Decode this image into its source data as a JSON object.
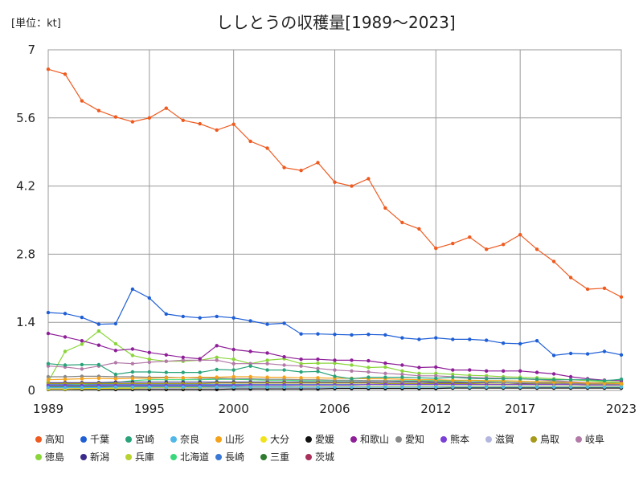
{
  "chart_data": {
    "type": "line",
    "title": "ししとうの収穫量[1989～2023]",
    "unit_label": "[単位：kt]",
    "x_ticks": [
      "1989",
      "1995",
      "2000",
      "2006",
      "2012",
      "2017",
      "2023"
    ],
    "y_ticks": [
      "0",
      "1.4",
      "2.8",
      "4.2",
      "5.6",
      "7"
    ],
    "ylim": [
      0,
      7
    ],
    "xlim": [
      1989,
      2023
    ],
    "grid": true,
    "legend_position": "bottom",
    "x": [
      1989,
      1990,
      1991,
      1992,
      1993,
      1994,
      1995,
      1996,
      1997,
      1998,
      1999,
      2000,
      2001,
      2002,
      2003,
      2004,
      2005,
      2006,
      2007,
      2008,
      2009,
      2010,
      2011,
      2012,
      2013,
      2014,
      2015,
      2016,
      2017,
      2018,
      2019,
      2020,
      2021,
      2022,
      2023
    ],
    "series": [
      {
        "name": "高知",
        "color": "#ee5a1f",
        "values": [
          6.6,
          6.5,
          5.95,
          5.75,
          5.62,
          5.52,
          5.6,
          5.8,
          5.55,
          5.48,
          5.35,
          5.47,
          5.12,
          4.98,
          4.58,
          4.52,
          4.68,
          4.28,
          4.2,
          4.35,
          3.75,
          3.45,
          3.32,
          2.92,
          3.02,
          3.15,
          2.9,
          3.0,
          3.2,
          2.9,
          2.65,
          2.32,
          2.08,
          2.1,
          1.92
        ]
      },
      {
        "name": "千葉",
        "color": "#1f5fd6",
        "values": [
          1.6,
          1.58,
          1.5,
          1.36,
          1.37,
          2.08,
          1.9,
          1.57,
          1.52,
          1.49,
          1.52,
          1.49,
          1.43,
          1.36,
          1.38,
          1.16,
          1.16,
          1.15,
          1.14,
          1.15,
          1.14,
          1.08,
          1.05,
          1.08,
          1.05,
          1.05,
          1.03,
          0.97,
          0.96,
          1.02,
          0.72,
          0.76,
          0.75,
          0.8,
          0.73
        ]
      },
      {
        "name": "宮崎",
        "color": "#2aa37a",
        "values": [
          0.55,
          0.52,
          0.53,
          0.53,
          0.33,
          0.38,
          0.38,
          0.37,
          0.37,
          0.37,
          0.43,
          0.42,
          0.5,
          0.42,
          0.42,
          0.38,
          0.39,
          0.29,
          0.24,
          0.27,
          0.27,
          0.27,
          0.26,
          0.25,
          0.27,
          0.25,
          0.24,
          0.24,
          0.24,
          0.23,
          0.22,
          0.22,
          0.22,
          0.2,
          0.23
        ]
      },
      {
        "name": "奈良",
        "color": "#4fb8e8",
        "values": [
          0.06,
          0.06,
          0.06,
          0.06,
          0.07,
          0.07,
          0.07,
          0.07,
          0.07,
          0.07,
          0.07,
          0.07,
          0.07,
          0.07,
          0.07,
          0.07,
          0.07,
          0.07,
          0.07,
          0.07,
          0.07,
          0.07,
          0.07,
          0.07,
          0.07,
          0.07,
          0.07,
          0.07,
          0.07,
          0.07,
          0.07,
          0.07,
          0.07,
          0.07,
          0.07
        ]
      },
      {
        "name": "山形",
        "color": "#f3a21a",
        "values": [
          0.22,
          0.23,
          0.24,
          0.25,
          0.24,
          0.25,
          0.25,
          0.26,
          0.26,
          0.27,
          0.27,
          0.28,
          0.28,
          0.27,
          0.27,
          0.26,
          0.26,
          0.25,
          0.25,
          0.24,
          0.24,
          0.23,
          0.22,
          0.22,
          0.21,
          0.21,
          0.2,
          0.2,
          0.19,
          0.18,
          0.17,
          0.16,
          0.15,
          0.15,
          0.14
        ]
      },
      {
        "name": "大分",
        "color": "#f2e21a",
        "values": [
          0.03,
          0.03,
          0.04,
          0.04,
          0.05,
          0.05,
          0.06,
          0.06,
          0.06,
          0.06,
          0.07,
          0.07,
          0.07,
          0.07,
          0.07,
          0.08,
          0.08,
          0.08,
          0.08,
          0.08,
          0.08,
          0.08,
          0.08,
          0.08,
          0.08,
          0.08,
          0.08,
          0.08,
          0.08,
          0.08,
          0.08,
          0.08,
          0.08,
          0.08,
          0.08
        ]
      },
      {
        "name": "愛媛",
        "color": "#111111",
        "values": [
          0.02,
          0.02,
          0.02,
          0.02,
          0.02,
          0.02,
          0.02,
          0.02,
          0.02,
          0.02,
          0.02,
          0.03,
          0.03,
          0.03,
          0.03,
          0.03,
          0.03,
          0.04,
          0.04,
          0.04,
          0.04,
          0.04,
          0.04,
          0.04,
          0.05,
          0.05,
          0.05,
          0.05,
          0.05,
          0.05,
          0.05,
          0.05,
          0.05,
          0.05,
          0.05
        ]
      },
      {
        "name": "和歌山",
        "color": "#8e1f98",
        "values": [
          1.17,
          1.1,
          1.02,
          0.93,
          0.82,
          0.85,
          0.78,
          0.73,
          0.68,
          0.65,
          0.92,
          0.84,
          0.8,
          0.77,
          0.69,
          0.64,
          0.64,
          0.62,
          0.62,
          0.61,
          0.56,
          0.52,
          0.47,
          0.48,
          0.42,
          0.42,
          0.4,
          0.4,
          0.4,
          0.37,
          0.34,
          0.28,
          0.24,
          0.21,
          0.2
        ]
      },
      {
        "name": "愛知",
        "color": "#888888",
        "values": [
          0.28,
          0.28,
          0.29,
          0.29,
          0.28,
          0.28,
          0.27,
          0.27,
          0.26,
          0.25,
          0.25,
          0.24,
          0.24,
          0.23,
          0.23,
          0.22,
          0.22,
          0.21,
          0.21,
          0.2,
          0.2,
          0.19,
          0.19,
          0.18,
          0.18,
          0.17,
          0.17,
          0.16,
          0.16,
          0.15,
          0.15,
          0.14,
          0.13,
          0.13,
          0.12
        ]
      },
      {
        "name": "熊本",
        "color": "#7a3fd6",
        "values": [
          0.1,
          0.1,
          0.1,
          0.1,
          0.1,
          0.1,
          0.1,
          0.1,
          0.1,
          0.1,
          0.1,
          0.1,
          0.11,
          0.11,
          0.11,
          0.11,
          0.11,
          0.11,
          0.11,
          0.12,
          0.12,
          0.12,
          0.12,
          0.12,
          0.12,
          0.12,
          0.12,
          0.12,
          0.12,
          0.12,
          0.12,
          0.12,
          0.11,
          0.11,
          0.11
        ]
      },
      {
        "name": "滋賀",
        "color": "#b3b7e0",
        "values": [
          0.05,
          0.05,
          0.05,
          0.05,
          0.05,
          0.05,
          0.05,
          0.05,
          0.05,
          0.05,
          0.05,
          0.05,
          0.05,
          0.05,
          0.05,
          0.05,
          0.05,
          0.05,
          0.05,
          0.05,
          0.05,
          0.05,
          0.05,
          0.05,
          0.05,
          0.05,
          0.05,
          0.05,
          0.05,
          0.05,
          0.05,
          0.05,
          0.05,
          0.05,
          0.05
        ]
      },
      {
        "name": "鳥取",
        "color": "#a69a1a",
        "values": [
          0.14,
          0.14,
          0.14,
          0.14,
          0.14,
          0.14,
          0.14,
          0.14,
          0.14,
          0.14,
          0.15,
          0.15,
          0.15,
          0.15,
          0.15,
          0.15,
          0.15,
          0.15,
          0.15,
          0.15,
          0.14,
          0.14,
          0.14,
          0.14,
          0.14,
          0.14,
          0.13,
          0.13,
          0.13,
          0.13,
          0.13,
          0.12,
          0.12,
          0.12,
          0.12
        ]
      },
      {
        "name": "岐阜",
        "color": "#b37aa8",
        "values": [
          0.5,
          0.48,
          0.44,
          0.5,
          0.57,
          0.55,
          0.58,
          0.6,
          0.62,
          0.62,
          0.62,
          0.55,
          0.55,
          0.55,
          0.52,
          0.5,
          0.45,
          0.42,
          0.4,
          0.38,
          0.35,
          0.33,
          0.3,
          0.3,
          0.28,
          0.27,
          0.26,
          0.25,
          0.24,
          0.22,
          0.2,
          0.18,
          0.16,
          0.15,
          0.14
        ]
      },
      {
        "name": "徳島",
        "color": "#8ad63a",
        "values": [
          0.18,
          0.8,
          0.95,
          1.22,
          0.96,
          0.72,
          0.64,
          0.6,
          0.6,
          0.62,
          0.68,
          0.64,
          0.55,
          0.62,
          0.65,
          0.55,
          0.56,
          0.56,
          0.52,
          0.47,
          0.48,
          0.4,
          0.35,
          0.35,
          0.33,
          0.31,
          0.3,
          0.28,
          0.27,
          0.26,
          0.24,
          0.22,
          0.2,
          0.18,
          0.17
        ]
      },
      {
        "name": "新潟",
        "color": "#3a2a8a",
        "values": [
          0.16,
          0.16,
          0.16,
          0.16,
          0.17,
          0.17,
          0.17,
          0.17,
          0.17,
          0.17,
          0.17,
          0.17,
          0.17,
          0.17,
          0.17,
          0.17,
          0.17,
          0.17,
          0.17,
          0.17,
          0.17,
          0.17,
          0.17,
          0.16,
          0.16,
          0.16,
          0.16,
          0.16,
          0.15,
          0.15,
          0.15,
          0.14,
          0.14,
          0.14,
          0.13
        ]
      },
      {
        "name": "兵庫",
        "color": "#b8d232",
        "values": [
          0.04,
          0.04,
          0.04,
          0.04,
          0.04,
          0.04,
          0.05,
          0.05,
          0.05,
          0.05,
          0.05,
          0.05,
          0.05,
          0.05,
          0.05,
          0.05,
          0.05,
          0.05,
          0.05,
          0.05,
          0.05,
          0.05,
          0.05,
          0.05,
          0.05,
          0.05,
          0.05,
          0.05,
          0.05,
          0.05,
          0.05,
          0.05,
          0.05,
          0.05,
          0.05
        ]
      },
      {
        "name": "北海道",
        "color": "#38d87a",
        "values": [
          0.1,
          0.1,
          0.12,
          0.15,
          0.16,
          0.2,
          0.22,
          0.22,
          0.22,
          0.22,
          0.23,
          0.23,
          0.22,
          0.21,
          0.21,
          0.2,
          0.2,
          0.2,
          0.2,
          0.2,
          0.2,
          0.2,
          0.2,
          0.2,
          0.2,
          0.2,
          0.19,
          0.19,
          0.19,
          0.18,
          0.18,
          0.17,
          0.16,
          0.16,
          0.15
        ]
      },
      {
        "name": "長崎",
        "color": "#3a78d6",
        "values": [
          0.12,
          0.12,
          0.12,
          0.12,
          0.12,
          0.12,
          0.12,
          0.12,
          0.12,
          0.12,
          0.12,
          0.12,
          0.12,
          0.12,
          0.12,
          0.12,
          0.12,
          0.12,
          0.12,
          0.12,
          0.12,
          0.12,
          0.12,
          0.12,
          0.12,
          0.12,
          0.12,
          0.12,
          0.12,
          0.12,
          0.12,
          0.12,
          0.12,
          0.12,
          0.12
        ]
      },
      {
        "name": "三重",
        "color": "#2e7a2e",
        "values": [
          0.08,
          0.08,
          0.08,
          0.08,
          0.08,
          0.08,
          0.08,
          0.08,
          0.08,
          0.08,
          0.08,
          0.08,
          0.08,
          0.08,
          0.08,
          0.08,
          0.08,
          0.08,
          0.08,
          0.08,
          0.08,
          0.08,
          0.08,
          0.08,
          0.08,
          0.08,
          0.08,
          0.08,
          0.08,
          0.08,
          0.08,
          0.08,
          0.08,
          0.08,
          0.08
        ]
      },
      {
        "name": "茨城",
        "color": "#a8305a",
        "values": [
          0.05,
          0.05,
          0.05,
          0.05,
          0.05,
          0.05,
          0.05,
          0.05,
          0.05,
          0.05,
          0.05,
          0.05,
          0.05,
          0.05,
          0.05,
          0.05,
          0.05,
          0.05,
          0.05,
          0.05,
          0.05,
          0.05,
          0.05,
          0.05,
          0.05,
          0.05,
          0.05,
          0.05,
          0.05,
          0.05,
          0.05,
          0.05,
          0.05,
          0.05,
          0.05
        ]
      }
    ]
  }
}
